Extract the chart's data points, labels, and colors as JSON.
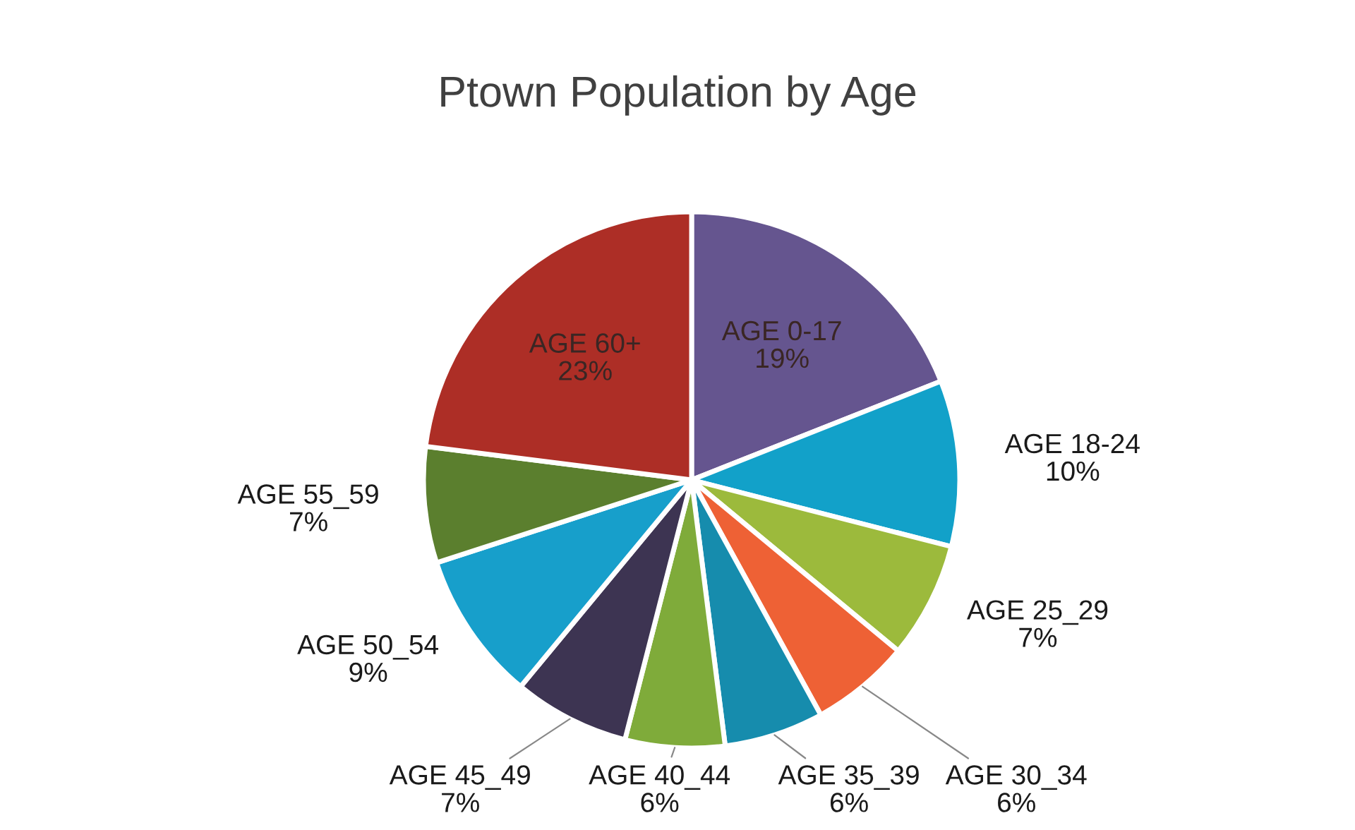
{
  "chart_data": {
    "type": "pie",
    "title": "Ptown Population by Age",
    "categories": [
      "AGE 0-17",
      "AGE 18-24",
      "AGE 25_29",
      "AGE 30_34",
      "AGE 35_39",
      "AGE 40_44",
      "AGE 45_49",
      "AGE 50_54",
      "AGE 55_59",
      "AGE 60+"
    ],
    "values": [
      19,
      10,
      7,
      6,
      6,
      6,
      7,
      9,
      7,
      23
    ],
    "value_labels": [
      "19%",
      "10%",
      "7%",
      "6%",
      "6%",
      "6%",
      "7%",
      "9%",
      "7%",
      "23%"
    ],
    "colors": [
      "#65558f",
      "#12a1c9",
      "#9cba3c",
      "#ee6135",
      "#168cad",
      "#7fab3a",
      "#3d3452",
      "#179fcb",
      "#5b7f2e",
      "#ad2e26"
    ]
  }
}
